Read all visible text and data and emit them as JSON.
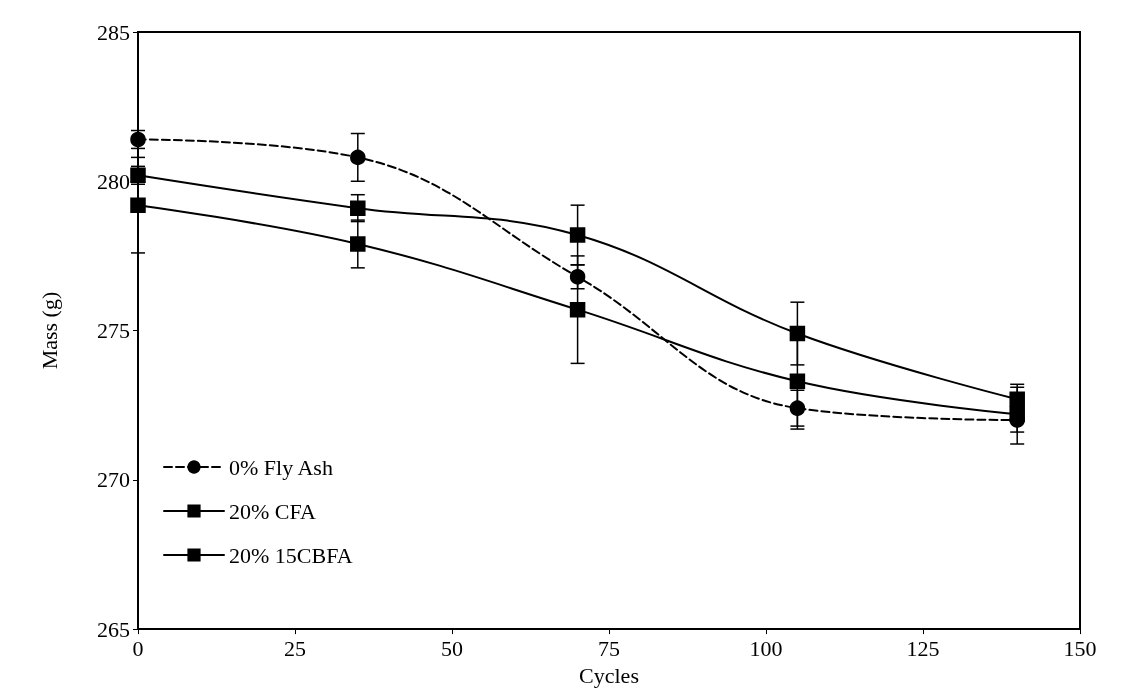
{
  "chart_data": {
    "type": "line",
    "xlabel": "Cycles",
    "ylabel": "Mass (g)",
    "x": [
      0,
      35,
      70,
      105,
      140
    ],
    "series": [
      {
        "name": "0% Fly Ash",
        "color": "#000000",
        "marker": "circle",
        "line_style": "dashed",
        "values": [
          281.4,
          280.8,
          276.8,
          272.4,
          272.0
        ],
        "errors": [
          0.3,
          0.8,
          0.4,
          0.6,
          0.4
        ]
      },
      {
        "name": "20% CFA",
        "color": "#000000",
        "marker": "square",
        "line_style": "solid",
        "values": [
          279.2,
          277.9,
          275.7,
          273.3,
          272.2
        ],
        "errors": [
          1.6,
          0.8,
          1.8,
          1.6,
          1.0
        ]
      },
      {
        "name": "20% 15CBFA",
        "color": "#000000",
        "marker": "square",
        "line_style": "solid",
        "values": [
          280.2,
          279.1,
          278.2,
          274.9,
          272.7
        ],
        "errors": [
          0.3,
          0.45,
          1.0,
          1.05,
          0.4
        ]
      }
    ],
    "xlim": [
      0,
      150
    ],
    "xticks": [
      0,
      25,
      50,
      75,
      100,
      125,
      150
    ],
    "ylim": [
      265,
      285
    ],
    "yticks": [
      265,
      270,
      275,
      280,
      285
    ],
    "grid": false,
    "legend": "bottom left"
  }
}
